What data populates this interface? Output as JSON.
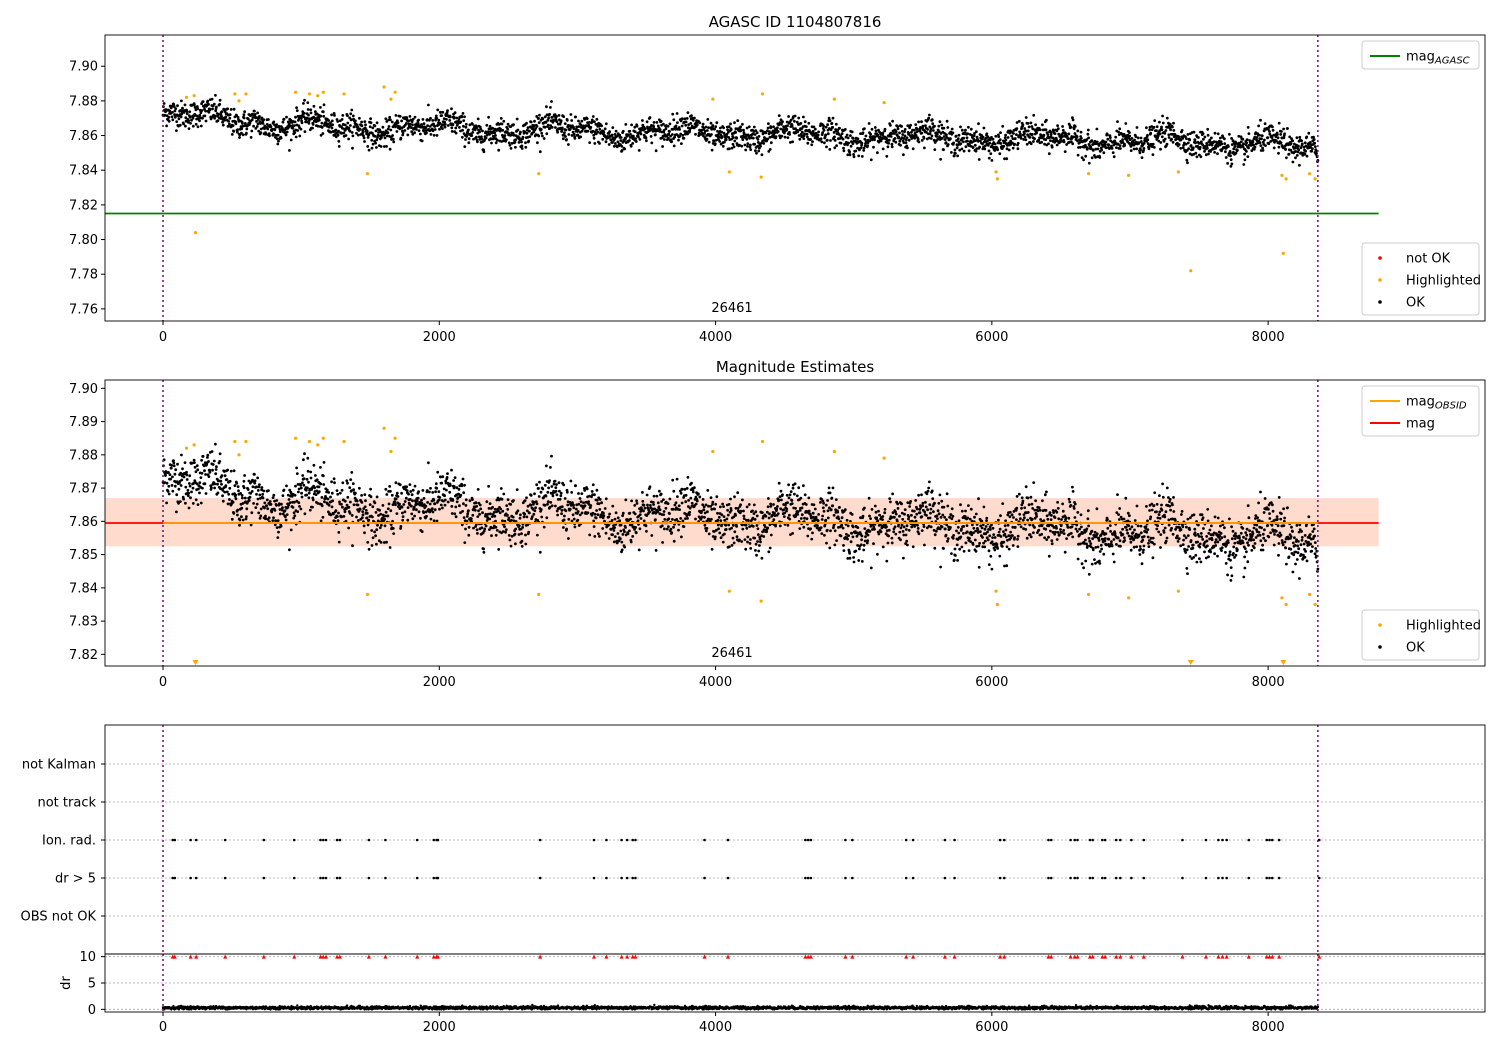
{
  "chart_data": [
    {
      "type": "scatter",
      "title": "AGASC ID 1104807816",
      "xlim": [
        -420,
        9570
      ],
      "ylim": [
        7.753,
        7.918
      ],
      "x_ticks": [
        0,
        2000,
        4000,
        6000,
        8000
      ],
      "y_ticks": [
        7.76,
        7.78,
        7.8,
        7.82,
        7.84,
        7.86,
        7.88,
        7.9
      ],
      "obsid_label": "26461",
      "obsid_boundaries": [
        0,
        8360
      ],
      "grid": false,
      "legends": [
        {
          "placement": "top-right",
          "entries": [
            {
              "label": "mag",
              "sub": "AGASC",
              "color": "#008000",
              "kind": "line"
            }
          ]
        },
        {
          "placement": "bottom-right",
          "entries": [
            {
              "label": "not OK",
              "color": "#ff0000",
              "kind": "point"
            },
            {
              "label": "Highlighted",
              "color": "#ffa500",
              "kind": "point"
            },
            {
              "label": "OK",
              "color": "#000000",
              "kind": "point"
            }
          ]
        }
      ],
      "series": [
        {
          "name": "mag",
          "kind": "hline",
          "y": 7.815,
          "x_range": [
            -420,
            8800
          ],
          "color": "#008000"
        },
        {
          "name": "OK",
          "kind": "scatter",
          "color": "#000000",
          "n_points": 3200,
          "x_range": [
            0,
            8360
          ],
          "mean_start": 7.867,
          "mean_end": 7.855,
          "spread": 0.0055
        },
        {
          "name": "Highlighted",
          "kind": "scatter",
          "color": "#ffa500",
          "points": [
            [
              170,
              7.882
            ],
            [
              225,
              7.883
            ],
            [
              235,
              7.804
            ],
            [
              520,
              7.884
            ],
            [
              550,
              7.88
            ],
            [
              600,
              7.884
            ],
            [
              960,
              7.885
            ],
            [
              1060,
              7.884
            ],
            [
              1120,
              7.883
            ],
            [
              1160,
              7.885
            ],
            [
              1310,
              7.884
            ],
            [
              1480,
              7.838
            ],
            [
              1600,
              7.888
            ],
            [
              1680,
              7.885
            ],
            [
              1650,
              7.881
            ],
            [
              2720,
              7.838
            ],
            [
              3980,
              7.881
            ],
            [
              4100,
              7.839
            ],
            [
              4340,
              7.884
            ],
            [
              4330,
              7.836
            ],
            [
              4860,
              7.881
            ],
            [
              5220,
              7.879
            ],
            [
              6030,
              7.839
            ],
            [
              6040,
              7.835
            ],
            [
              6700,
              7.838
            ],
            [
              6990,
              7.837
            ],
            [
              7350,
              7.839
            ],
            [
              7440,
              7.782
            ],
            [
              8100,
              7.837
            ],
            [
              8110,
              7.792
            ],
            [
              8130,
              7.835
            ],
            [
              8300,
              7.838
            ],
            [
              8340,
              7.835
            ]
          ]
        }
      ]
    },
    {
      "type": "scatter",
      "title": "Magnitude Estimates",
      "xlim": [
        -420,
        9570
      ],
      "ylim": [
        7.8165,
        7.9025
      ],
      "x_ticks": [
        0,
        2000,
        4000,
        6000,
        8000
      ],
      "y_ticks": [
        7.82,
        7.83,
        7.84,
        7.85,
        7.86,
        7.87,
        7.88,
        7.89,
        7.9
      ],
      "obsid_label": "26461",
      "obsid_boundaries": [
        0,
        8360
      ],
      "grid": false,
      "band": {
        "y_low": 7.8525,
        "y_high": 7.867,
        "x_range": [
          -420,
          8800
        ],
        "color": "#ffccb8"
      },
      "legends": [
        {
          "placement": "top-right",
          "entries": [
            {
              "label": "mag",
              "sub": "OBSID",
              "color": "#ffa500",
              "kind": "line"
            },
            {
              "label": "mag",
              "sub": "",
              "color": "#ff0000",
              "kind": "line"
            }
          ]
        },
        {
          "placement": "bottom-right",
          "entries": [
            {
              "label": "Highlighted",
              "color": "#ffa500",
              "kind": "point"
            },
            {
              "label": "OK",
              "color": "#000000",
              "kind": "point"
            }
          ]
        }
      ],
      "series": [
        {
          "name": "mag",
          "kind": "hline",
          "y": 7.8595,
          "x_range": [
            -420,
            8800
          ],
          "color": "#ff0000"
        },
        {
          "name": "mag OBSID",
          "kind": "hline",
          "y": 7.8595,
          "x_range": [
            0,
            8360
          ],
          "color": "#ffa500"
        },
        {
          "name": "OK",
          "kind": "scatter",
          "color": "#000000",
          "n_points": 3200,
          "x_range": [
            0,
            8360
          ],
          "mean_start": 7.867,
          "mean_end": 7.855,
          "spread": 0.0055
        },
        {
          "name": "Highlighted",
          "kind": "scatter",
          "color": "#ffa500",
          "points": [
            [
              170,
              7.882
            ],
            [
              225,
              7.883
            ],
            [
              520,
              7.884
            ],
            [
              550,
              7.88
            ],
            [
              600,
              7.884
            ],
            [
              960,
              7.885
            ],
            [
              1060,
              7.884
            ],
            [
              1120,
              7.883
            ],
            [
              1160,
              7.885
            ],
            [
              1310,
              7.884
            ],
            [
              1480,
              7.838
            ],
            [
              1600,
              7.888
            ],
            [
              1680,
              7.885
            ],
            [
              1650,
              7.881
            ],
            [
              2720,
              7.838
            ],
            [
              3980,
              7.881
            ],
            [
              4100,
              7.839
            ],
            [
              4340,
              7.884
            ],
            [
              4330,
              7.836
            ],
            [
              4860,
              7.881
            ],
            [
              5220,
              7.879
            ],
            [
              6030,
              7.839
            ],
            [
              6040,
              7.835
            ],
            [
              6700,
              7.838
            ],
            [
              6990,
              7.837
            ],
            [
              7350,
              7.839
            ],
            [
              8100,
              7.837
            ],
            [
              8130,
              7.835
            ],
            [
              8300,
              7.838
            ],
            [
              8340,
              7.835
            ]
          ],
          "below_limit_x": [
            235,
            7440,
            8110
          ]
        }
      ]
    },
    {
      "type": "scatter",
      "title": "",
      "xlim": [
        -420,
        9570
      ],
      "x_ticks": [
        0,
        2000,
        4000,
        6000,
        8000
      ],
      "obsid_boundaries": [
        0,
        8360
      ],
      "flag_categories": [
        "not Kalman",
        "not track",
        "Ion. rad.",
        "dr > 5",
        "OBS not OK"
      ],
      "flag_x": [
        70,
        85,
        200,
        240,
        450,
        730,
        950,
        1140,
        1160,
        1180,
        1260,
        1280,
        1490,
        1610,
        1840,
        1960,
        1980,
        1990,
        2730,
        3120,
        3210,
        3320,
        3360,
        3400,
        3420,
        3920,
        4090,
        4650,
        4670,
        4690,
        4940,
        4990,
        5380,
        5430,
        5660,
        5730,
        6060,
        6090,
        6410,
        6430,
        6570,
        6600,
        6620,
        6710,
        6730,
        6800,
        6820,
        6900,
        6930,
        7010,
        7100,
        7380,
        7550,
        7640,
        7670,
        7700,
        7860,
        7990,
        8010,
        8030,
        8080,
        8370
      ],
      "flag_rows": [
        "Ion. rad.",
        "dr > 5"
      ],
      "dr": {
        "ylabel": "dr",
        "yticks": [
          0,
          5,
          10
        ],
        "ylim": [
          -0.5,
          10.5
        ],
        "clipped_value": 10,
        "baseline_mean": 0.3,
        "baseline_spread": 0.15,
        "n_points": 3200,
        "marker_color": "#ff0000"
      }
    }
  ]
}
